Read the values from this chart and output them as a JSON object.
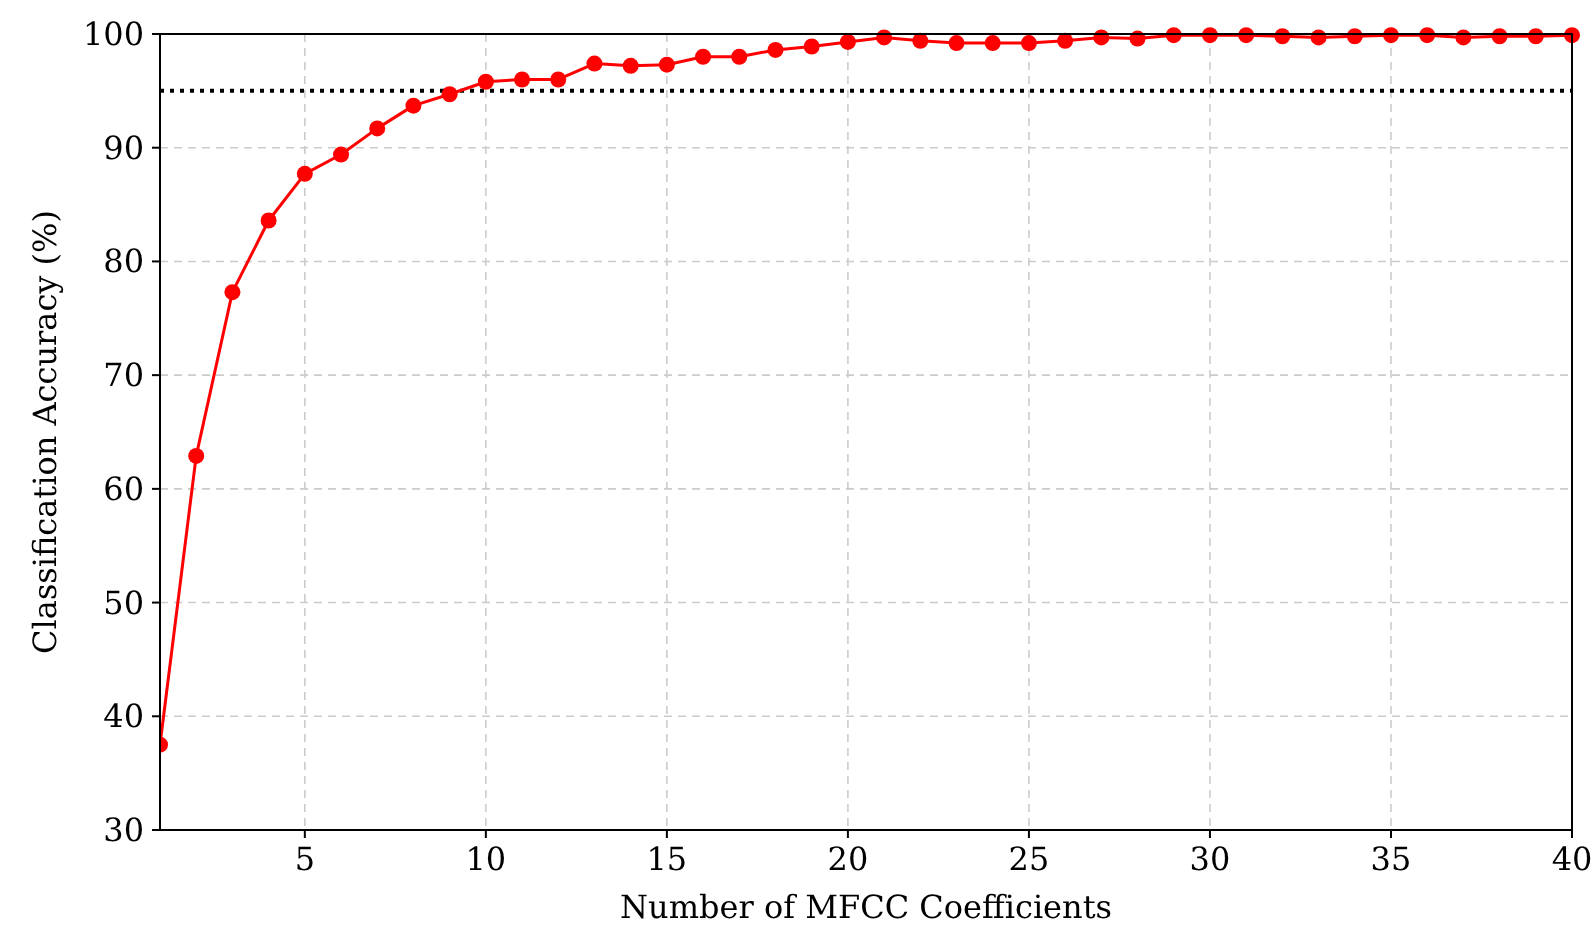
{
  "chart_data": {
    "type": "line",
    "xlabel": "Number of MFCC Coefficients",
    "ylabel": "Classification Accuracy (%)",
    "x": [
      1,
      2,
      3,
      4,
      5,
      6,
      7,
      8,
      9,
      10,
      11,
      12,
      13,
      14,
      15,
      16,
      17,
      18,
      19,
      20,
      21,
      22,
      23,
      24,
      25,
      26,
      27,
      28,
      29,
      30,
      31,
      32,
      33,
      34,
      35,
      36,
      37,
      38,
      39,
      40
    ],
    "series": [
      {
        "color": "#ff0000",
        "values": [
          37.5,
          62.9,
          77.3,
          83.6,
          87.7,
          89.4,
          91.7,
          93.7,
          94.7,
          95.8,
          96.0,
          96.0,
          97.4,
          97.2,
          97.3,
          98.0,
          98.0,
          98.6,
          98.9,
          99.3,
          99.7,
          99.4,
          99.2,
          99.2,
          99.2,
          99.4,
          99.7,
          99.6,
          99.9,
          99.9,
          99.9,
          99.8,
          99.7,
          99.8,
          99.9,
          99.9,
          99.7,
          99.8,
          99.8,
          99.9
        ]
      }
    ],
    "xlim": [
      1,
      40
    ],
    "xticks": [
      5,
      10,
      15,
      20,
      25,
      30,
      35,
      40
    ],
    "ylim": [
      30,
      100
    ],
    "yticks": [
      30,
      40,
      50,
      60,
      70,
      80,
      90,
      100
    ],
    "ref_lines": [
      {
        "axis": "y",
        "value": 95,
        "color": "#000000",
        "line_style": "dotted"
      }
    ],
    "grid": true,
    "marker": "circle",
    "line_style": "solid"
  }
}
